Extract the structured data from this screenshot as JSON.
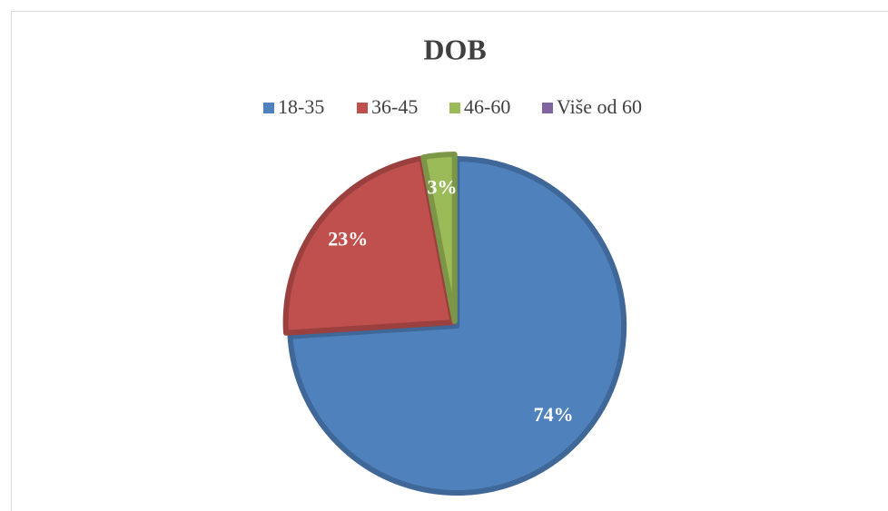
{
  "chart_data": {
    "type": "pie",
    "title": "DOB",
    "categories": [
      "18-35",
      "36-45",
      "46-60",
      "Više od 60"
    ],
    "values": [
      74,
      23,
      3,
      0
    ],
    "value_labels": [
      "74%",
      "23%",
      "3%",
      null
    ],
    "colors": [
      "#4f81bd",
      "#c0504d",
      "#9bbb59",
      "#8064a2"
    ],
    "legend": "top"
  }
}
